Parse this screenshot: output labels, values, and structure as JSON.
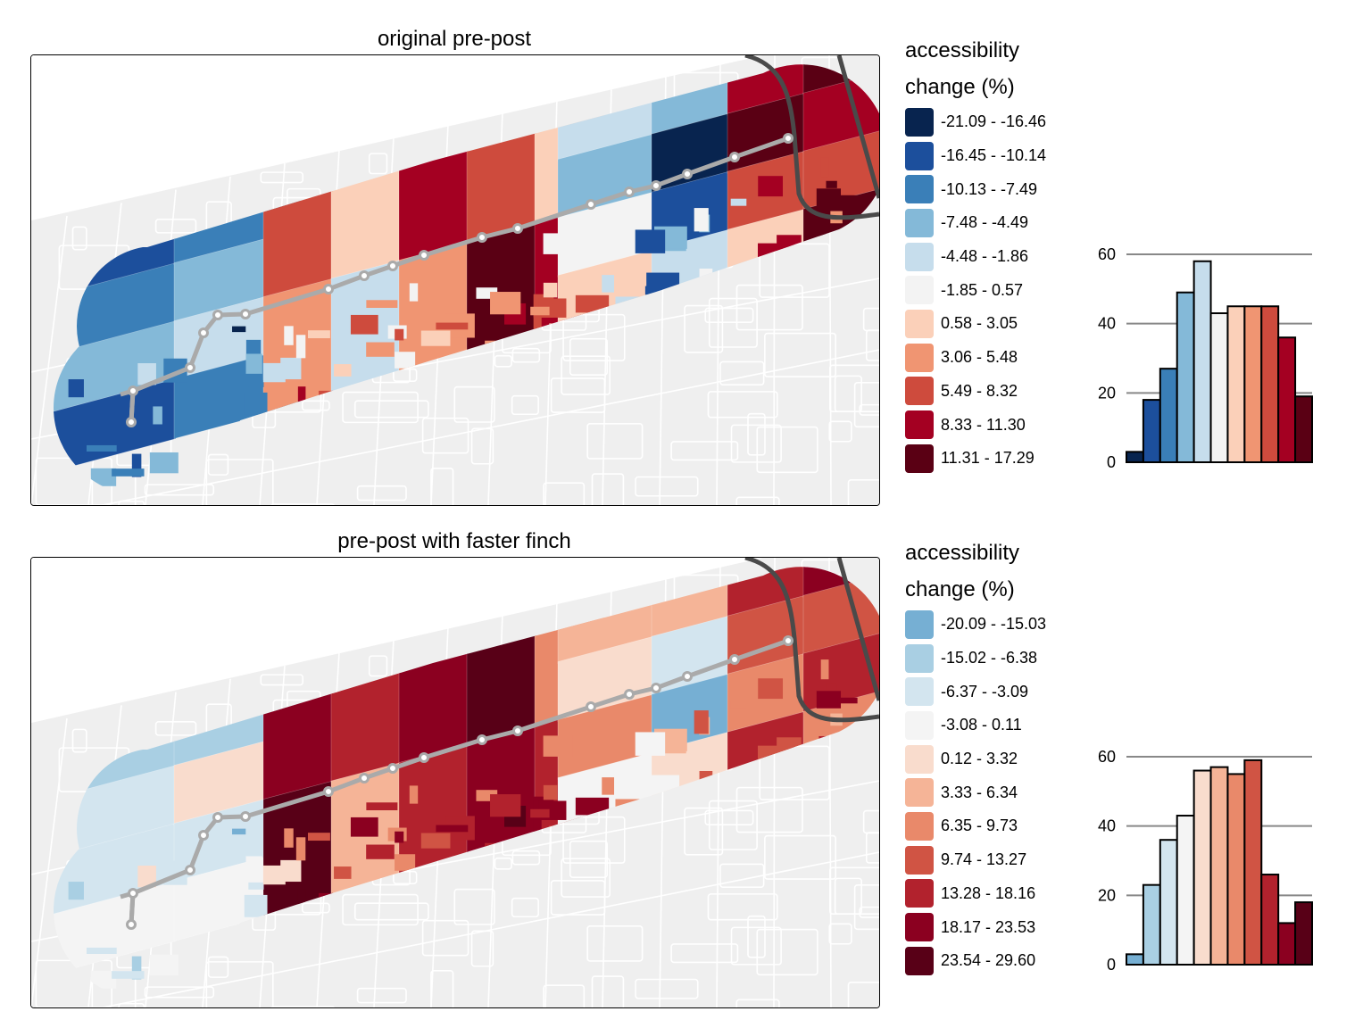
{
  "panels": [
    {
      "title": "original pre-post",
      "legend": {
        "title_line1": "accessibility",
        "title_line2": "change (%)",
        "items": [
          {
            "label": "-21.09 - -16.46",
            "color": "#08244f"
          },
          {
            "label": "-16.45 - -10.14",
            "color": "#1c4f9c"
          },
          {
            "label": "-10.13 - -7.49",
            "color": "#3a7fb8"
          },
          {
            "label": "-7.48 - -4.49",
            "color": "#84b9d8"
          },
          {
            "label": "-4.48 - -1.86",
            "color": "#c6ddec"
          },
          {
            "label": "-1.85 - 0.57",
            "color": "#f3f3f3"
          },
          {
            "label": "0.58 - 3.05",
            "color": "#fbd0b9"
          },
          {
            "label": "3.06 - 5.48",
            "color": "#f09572"
          },
          {
            "label": "5.49 - 8.32",
            "color": "#ce4b3d"
          },
          {
            "label": "8.33 - 11.30",
            "color": "#a40022"
          },
          {
            "label": "11.31 - 17.29",
            "color": "#5a0014"
          }
        ]
      },
      "histogram": {
        "y_ticks": [
          "0",
          "20",
          "40",
          "60"
        ],
        "counts": [
          3,
          18,
          27,
          49,
          58,
          43,
          45,
          45,
          45,
          36,
          19
        ]
      }
    },
    {
      "title": "pre-post with faster finch",
      "legend": {
        "title_line1": "accessibility",
        "title_line2": "change (%)",
        "items": [
          {
            "label": "-20.09 - -15.03",
            "color": "#76afd3"
          },
          {
            "label": "-15.02 - -6.38",
            "color": "#a9cfe3"
          },
          {
            "label": "-6.37 - -3.09",
            "color": "#d3e5ef"
          },
          {
            "label": "-3.08 - 0.11",
            "color": "#f4f4f4"
          },
          {
            "label": "0.12 - 3.32",
            "color": "#f9dccd"
          },
          {
            "label": "3.33 - 6.34",
            "color": "#f5b497"
          },
          {
            "label": "6.35 - 9.73",
            "color": "#e9896a"
          },
          {
            "label": "9.74 - 13.27",
            "color": "#d05444"
          },
          {
            "label": "13.28 - 18.16",
            "color": "#b2222d"
          },
          {
            "label": "18.17 - 23.53",
            "color": "#8b0020"
          },
          {
            "label": "23.54 - 29.60",
            "color": "#580017"
          }
        ]
      },
      "histogram": {
        "y_ticks": [
          "0",
          "20",
          "40",
          "60"
        ],
        "counts": [
          3,
          23,
          36,
          43,
          56,
          57,
          55,
          59,
          26,
          12,
          18
        ]
      }
    }
  ],
  "chart_data": [
    {
      "type": "bar",
      "title": "original pre-post",
      "xlabel": "",
      "ylabel": "",
      "categories": [
        "-21.09 - -16.46",
        "-16.45 - -10.14",
        "-10.13 - -7.49",
        "-7.48 - -4.49",
        "-4.48 - -1.86",
        "-1.85 - 0.57",
        "0.58 - 3.05",
        "3.06 - 5.48",
        "5.49 - 8.32",
        "8.33 - 11.30",
        "11.31 - 17.29"
      ],
      "values": [
        3,
        18,
        27,
        49,
        58,
        43,
        45,
        45,
        45,
        36,
        19
      ],
      "ylim": [
        0,
        60
      ],
      "grid": true
    },
    {
      "type": "bar",
      "title": "pre-post with faster finch",
      "xlabel": "",
      "ylabel": "",
      "categories": [
        "-20.09 - -15.03",
        "-15.02 - -6.38",
        "-6.37 - -3.09",
        "-3.08 - 0.11",
        "0.12 - 3.32",
        "3.33 - 6.34",
        "6.35 - 9.73",
        "9.74 - 13.27",
        "13.28 - 18.16",
        "18.17 - 23.53",
        "23.54 - 29.60"
      ],
      "values": [
        3,
        23,
        36,
        43,
        56,
        57,
        55,
        59,
        26,
        12,
        18
      ],
      "ylim": [
        0,
        60
      ],
      "grid": true
    }
  ],
  "map": {
    "basemap_color": "#efefef",
    "road_color": "#ffffff",
    "route_color": "#aaaaaa",
    "highway_color": "#4a4a4a"
  }
}
